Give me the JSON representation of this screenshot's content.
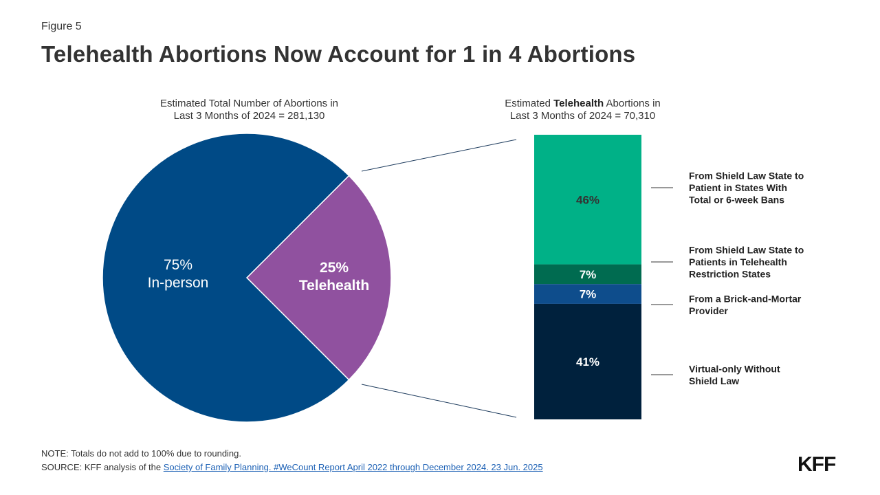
{
  "figure_label": "Figure 5",
  "title": "Telehealth Abortions Now Account for 1 in 4 Abortions",
  "left_subtitle": {
    "line1": "Estimated Total Number of Abortions in",
    "line2": "Last 3 Months of 2024 = 281,130"
  },
  "right_subtitle": {
    "prefix": "Estimated ",
    "bold": "Telehealth",
    "suffix": " Abortions in",
    "line2": "Last 3 Months of 2024 = 70,310"
  },
  "chart_data": [
    {
      "type": "pie",
      "slices": [
        {
          "label_lines": [
            "75%",
            "In-person"
          ],
          "value": 75,
          "color": "#004a86"
        },
        {
          "label_lines": [
            "25%",
            "Telehealth"
          ],
          "value": 25,
          "color": "#90519f"
        }
      ]
    },
    {
      "type": "bar",
      "stacked": true,
      "segments": [
        {
          "label": "46%",
          "value": 46,
          "color": "#00b187",
          "text_color": "#333333",
          "legend_lines": [
            "From Shield Law State to",
            "Patient in States With",
            "Total or 6-week Bans"
          ]
        },
        {
          "label": "7%",
          "value": 7,
          "color": "#006b50",
          "text_color": "#ffffff",
          "legend_lines": [
            "From Shield Law State to",
            "Patients in Telehealth",
            "Restriction States"
          ]
        },
        {
          "label": "7%",
          "value": 7,
          "color": "#0e4d8c",
          "text_color": "#ffffff",
          "legend_lines": [
            "From a Brick-and-Mortar",
            "Provider"
          ]
        },
        {
          "label": "41%",
          "value": 41,
          "color": "#00213d",
          "text_color": "#ffffff",
          "legend_lines": [
            "Virtual-only Without",
            "Shield Law"
          ]
        }
      ]
    }
  ],
  "note": "NOTE: Totals do not add to 100% due to rounding.",
  "source_prefix": "SOURCE: KFF analysis of the ",
  "source_link": "Society of Family Planning. #WeCount Report April 2022 through December 2024. 23 Jun. 2025",
  "logo": "KFF"
}
